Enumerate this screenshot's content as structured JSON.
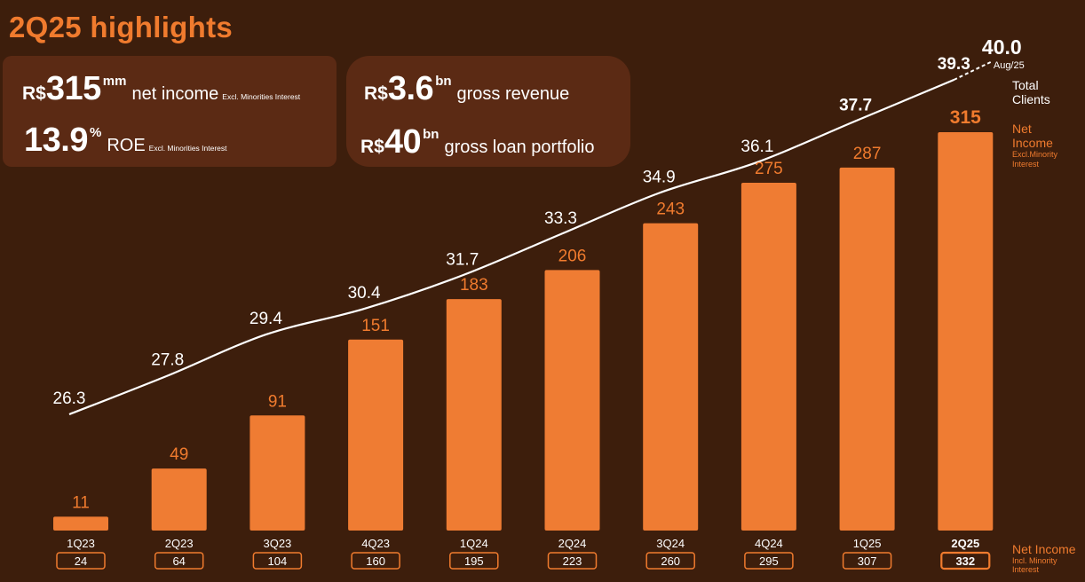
{
  "header": {
    "title": "2Q25 highlights"
  },
  "kpis": {
    "net_income": {
      "currency": "R$",
      "value": "315",
      "unit": "mm",
      "label": "net income",
      "note": "Excl. Minorities Interest"
    },
    "roe": {
      "value": "13.9",
      "unit": "%",
      "label": "ROE",
      "note": "Excl. Minorities Interest"
    },
    "gross_revenue": {
      "currency": "R$",
      "value": "3.6",
      "unit": "bn",
      "label": "gross revenue"
    },
    "gross_loan_portfolio": {
      "currency": "R$",
      "value": "40",
      "unit": "bn",
      "label": "gross loan portfolio"
    }
  },
  "legend": {
    "total_clients": {
      "line1": "Total",
      "line2": "Clients"
    },
    "net_income_excl": {
      "line1": "Net",
      "line2": "Income",
      "line3": "Excl.Minority",
      "line4": "Interest"
    },
    "net_income_incl": {
      "line1": "Net Income",
      "line2": "Incl. Minority",
      "line3": "Interest"
    }
  },
  "colors": {
    "background": "#3d1e0c",
    "card": "#5b2a14",
    "accent": "#f07b2e",
    "bar": "#ef7c33",
    "text": "#ffffff"
  },
  "chart_data": {
    "type": "bar",
    "categories": [
      "1Q23",
      "2Q23",
      "3Q23",
      "4Q23",
      "1Q24",
      "2Q24",
      "3Q24",
      "4Q24",
      "1Q25",
      "2Q25"
    ],
    "series": [
      {
        "name": "Net Income Excl.Minority Interest",
        "type": "bar",
        "values": [
          11,
          49,
          91,
          151,
          183,
          206,
          243,
          275,
          287,
          315
        ]
      },
      {
        "name": "Total Clients",
        "type": "line",
        "values": [
          26.3,
          27.8,
          29.4,
          30.4,
          31.7,
          33.3,
          34.9,
          36.1,
          37.7,
          39.3
        ]
      },
      {
        "name": "Net Income Incl. Minority Interest",
        "type": "table",
        "values": [
          24,
          64,
          104,
          160,
          195,
          223,
          260,
          295,
          307,
          332
        ]
      }
    ],
    "extra_point": {
      "label": "Aug/25",
      "value": 40.0,
      "value_text": "40.0"
    },
    "labels": {
      "bars": [
        "11",
        "49",
        "91",
        "151",
        "183",
        "206",
        "243",
        "275",
        "287",
        "315"
      ],
      "line": [
        "26.3",
        "27.8",
        "29.4",
        "30.4",
        "31.7",
        "33.3",
        "34.9",
        "36.1",
        "37.7",
        "39.3"
      ],
      "incl": [
        "24",
        "64",
        "104",
        "160",
        "195",
        "223",
        "260",
        "295",
        "307",
        "332"
      ]
    },
    "ylim": [
      0,
      315
    ],
    "title": "",
    "xlabel": "",
    "ylabel": ""
  }
}
